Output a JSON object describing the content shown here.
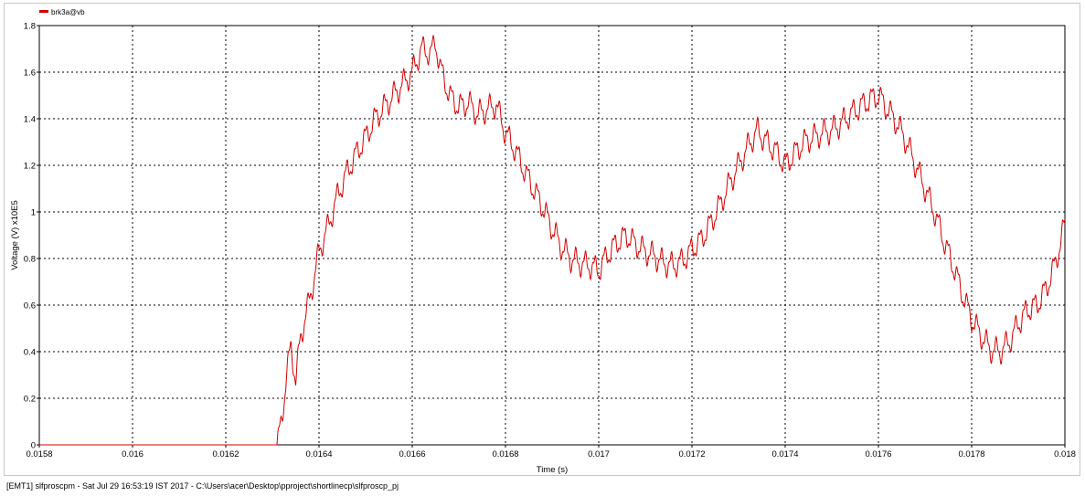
{
  "status_bar": {
    "text": "[EMT1] slfproscpm - Sat Jul 29 16:53:19 IST 2017 - C:\\Users\\acer\\Desktop\\pproject\\shortlinecp\\slfproscp_pj"
  },
  "colors": {
    "series": "#d40000",
    "grid": "#000000",
    "axis": "#000000",
    "background": "#ffffff"
  },
  "chart_data": {
    "type": "line",
    "title": "",
    "xlabel": "Time (s)",
    "ylabel": "Voltage (V) x10E5",
    "xlim": [
      0.0158,
      0.018
    ],
    "ylim": [
      0,
      1.8
    ],
    "xticks": [
      0.0158,
      0.016,
      0.0162,
      0.0164,
      0.0166,
      0.0168,
      0.017,
      0.0172,
      0.0174,
      0.0176,
      0.0178,
      0.018
    ],
    "xtick_labels": [
      "0.0158",
      "0.016",
      "0.0162",
      "0.0164",
      "0.0166",
      "0.0168",
      "0.017",
      "0.0172",
      "0.0174",
      "0.0176",
      "0.0178",
      "0.018"
    ],
    "yticks": [
      0,
      0.2,
      0.4,
      0.6,
      0.8,
      1,
      1.2,
      1.4,
      1.6,
      1.8
    ],
    "ytick_labels": [
      "0",
      "0.2",
      "0.4",
      "0.6",
      "0.8",
      "1",
      "1.2",
      "1.4",
      "1.6",
      "1.8"
    ],
    "grid": true,
    "legend_position": "top-left",
    "series": [
      {
        "name": "brk3a@vb",
        "x": [
          0.0158,
          0.01631,
          0.01632,
          0.01633,
          0.01634,
          0.01635,
          0.01636,
          0.01637,
          0.01638,
          0.0164,
          0.01642,
          0.01644,
          0.01646,
          0.01648,
          0.0165,
          0.01652,
          0.01654,
          0.01656,
          0.01658,
          0.0166,
          0.01662,
          0.01664,
          0.01665,
          0.01666,
          0.01667,
          0.01668,
          0.0167,
          0.01672,
          0.01674,
          0.01676,
          0.01678,
          0.0168,
          0.01682,
          0.01684,
          0.01686,
          0.01688,
          0.0169,
          0.01692,
          0.01694,
          0.01696,
          0.01698,
          0.017,
          0.01702,
          0.01704,
          0.01706,
          0.01708,
          0.0171,
          0.01712,
          0.01714,
          0.01716,
          0.01718,
          0.0172,
          0.01722,
          0.01724,
          0.01726,
          0.01728,
          0.0173,
          0.01732,
          0.01734,
          0.01736,
          0.01738,
          0.0174,
          0.01742,
          0.01744,
          0.01746,
          0.01748,
          0.0175,
          0.01752,
          0.01754,
          0.01756,
          0.01758,
          0.0176,
          0.01762,
          0.01764,
          0.01766,
          0.01768,
          0.0177,
          0.01772,
          0.01774,
          0.01776,
          0.01778,
          0.0178,
          0.01782,
          0.01784,
          0.01786,
          0.01788,
          0.0179,
          0.01792,
          0.01794,
          0.01796,
          0.01798,
          0.018
        ],
        "y": [
          0,
          0,
          0.1,
          0.3,
          0.42,
          0.28,
          0.45,
          0.55,
          0.62,
          0.83,
          0.94,
          1.07,
          1.17,
          1.25,
          1.32,
          1.4,
          1.45,
          1.5,
          1.55,
          1.6,
          1.7,
          1.68,
          1.73,
          1.62,
          1.56,
          1.5,
          1.45,
          1.47,
          1.42,
          1.44,
          1.46,
          1.34,
          1.27,
          1.18,
          1.1,
          1.02,
          0.93,
          0.85,
          0.8,
          0.78,
          0.77,
          0.75,
          0.82,
          0.87,
          0.9,
          0.86,
          0.83,
          0.81,
          0.78,
          0.77,
          0.79,
          0.84,
          0.88,
          0.95,
          1.03,
          1.12,
          1.2,
          1.28,
          1.35,
          1.3,
          1.26,
          1.2,
          1.25,
          1.3,
          1.32,
          1.34,
          1.35,
          1.38,
          1.42,
          1.45,
          1.48,
          1.5,
          1.44,
          1.38,
          1.3,
          1.2,
          1.1,
          1.0,
          0.88,
          0.77,
          0.65,
          0.54,
          0.47,
          0.41,
          0.4,
          0.44,
          0.52,
          0.58,
          0.6,
          0.67,
          0.78,
          0.95
        ]
      }
    ]
  }
}
